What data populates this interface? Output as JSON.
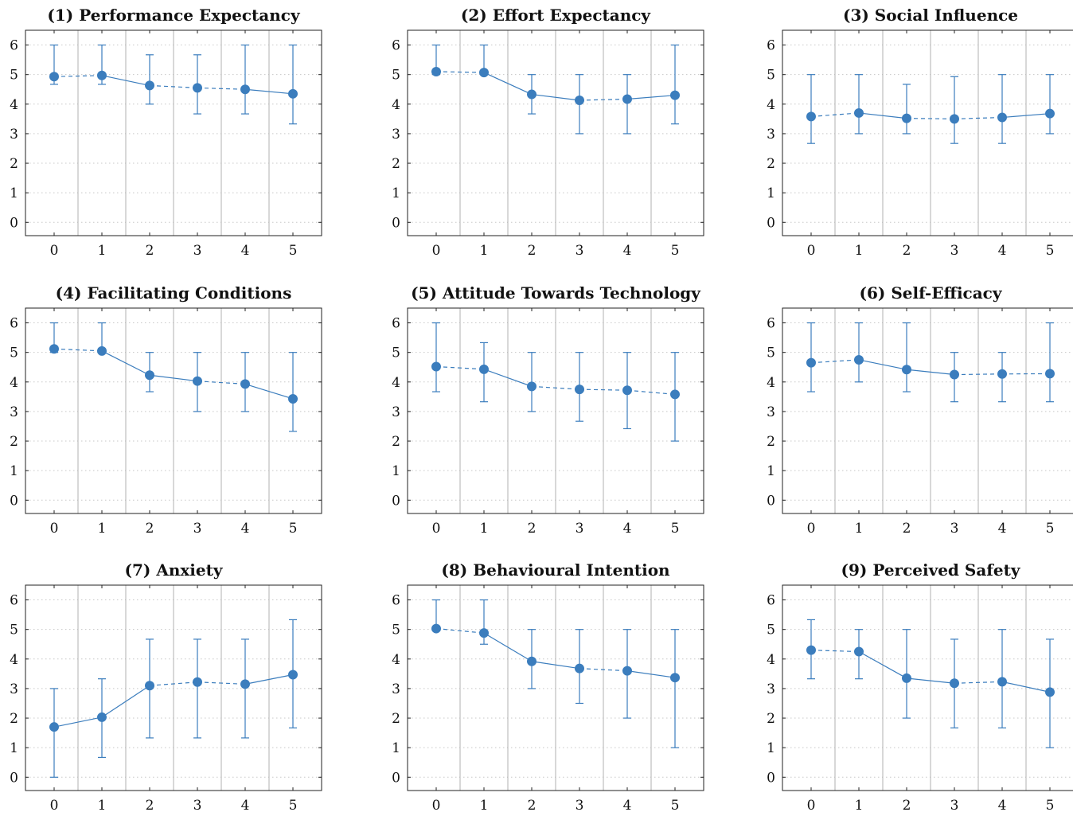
{
  "chart_data": [
    {
      "type": "line",
      "title": "(1) Performance Expectancy",
      "x": [
        0,
        1,
        2,
        3,
        4,
        5
      ],
      "mean": [
        4.93,
        4.97,
        4.63,
        4.55,
        4.5,
        4.35
      ],
      "lower": [
        4.67,
        4.67,
        4.0,
        3.67,
        3.67,
        3.33
      ],
      "upper": [
        6.0,
        6.0,
        5.67,
        5.67,
        6.0,
        6.0
      ],
      "segment_styles": [
        "dashed",
        "solid",
        "dashed",
        "dashed",
        "solid"
      ],
      "xlim": [
        -0.6,
        5.6
      ],
      "ylim": [
        -0.45,
        6.5
      ],
      "yticks": [
        0,
        1,
        2,
        3,
        4,
        5,
        6
      ]
    },
    {
      "type": "line",
      "title": "(2) Effort Expectancy",
      "x": [
        0,
        1,
        2,
        3,
        4,
        5
      ],
      "mean": [
        5.1,
        5.07,
        4.33,
        4.13,
        4.17,
        4.3
      ],
      "lower": [
        5.0,
        5.0,
        3.67,
        3.0,
        3.0,
        3.33
      ],
      "upper": [
        6.0,
        6.0,
        5.0,
        5.0,
        5.0,
        6.0
      ],
      "segment_styles": [
        "dashed",
        "solid",
        "solid",
        "dashed",
        "solid"
      ],
      "xlim": [
        -0.6,
        5.6
      ],
      "ylim": [
        -0.45,
        6.5
      ],
      "yticks": [
        0,
        1,
        2,
        3,
        4,
        5,
        6
      ]
    },
    {
      "type": "line",
      "title": "(3) Social Influence",
      "x": [
        0,
        1,
        2,
        3,
        4,
        5
      ],
      "mean": [
        3.58,
        3.7,
        3.52,
        3.5,
        3.55,
        3.68
      ],
      "lower": [
        2.67,
        3.0,
        3.0,
        2.67,
        2.67,
        3.0
      ],
      "upper": [
        5.0,
        5.0,
        4.67,
        4.93,
        5.0,
        5.0
      ],
      "segment_styles": [
        "dashed",
        "solid",
        "dashed",
        "dashed",
        "solid"
      ],
      "xlim": [
        -0.6,
        5.6
      ],
      "ylim": [
        -0.45,
        6.5
      ],
      "yticks": [
        0,
        1,
        2,
        3,
        4,
        5,
        6
      ]
    },
    {
      "type": "line",
      "title": "(4) Facilitating Conditions",
      "x": [
        0,
        1,
        2,
        3,
        4,
        5
      ],
      "mean": [
        5.12,
        5.05,
        4.23,
        4.03,
        3.93,
        3.43
      ],
      "lower": [
        5.0,
        5.0,
        3.67,
        3.0,
        3.0,
        2.33
      ],
      "upper": [
        6.0,
        6.0,
        5.0,
        5.0,
        5.0,
        5.0
      ],
      "segment_styles": [
        "dashed",
        "solid",
        "solid",
        "dashed",
        "solid"
      ],
      "xlim": [
        -0.6,
        5.6
      ],
      "ylim": [
        -0.45,
        6.5
      ],
      "yticks": [
        0,
        1,
        2,
        3,
        4,
        5,
        6
      ]
    },
    {
      "type": "line",
      "title": "(5) Attitude Towards Technology",
      "x": [
        0,
        1,
        2,
        3,
        4,
        5
      ],
      "mean": [
        4.52,
        4.43,
        3.85,
        3.75,
        3.72,
        3.58
      ],
      "lower": [
        3.67,
        3.33,
        3.0,
        2.67,
        2.42,
        2.0
      ],
      "upper": [
        6.0,
        5.33,
        5.0,
        5.0,
        5.0,
        5.0
      ],
      "segment_styles": [
        "dashed",
        "solid",
        "dashed",
        "dashed",
        "dashed"
      ],
      "xlim": [
        -0.6,
        5.6
      ],
      "ylim": [
        -0.45,
        6.5
      ],
      "yticks": [
        0,
        1,
        2,
        3,
        4,
        5,
        6
      ]
    },
    {
      "type": "line",
      "title": "(6) Self-Efficacy",
      "x": [
        0,
        1,
        2,
        3,
        4,
        5
      ],
      "mean": [
        4.65,
        4.75,
        4.42,
        4.25,
        4.27,
        4.28
      ],
      "lower": [
        3.67,
        4.0,
        3.67,
        3.33,
        3.33,
        3.33
      ],
      "upper": [
        6.0,
        6.0,
        6.0,
        5.0,
        5.0,
        6.0
      ],
      "segment_styles": [
        "dashed",
        "solid",
        "solid",
        "dashed",
        "dashed"
      ],
      "xlim": [
        -0.6,
        5.6
      ],
      "ylim": [
        -0.45,
        6.5
      ],
      "yticks": [
        0,
        1,
        2,
        3,
        4,
        5,
        6
      ]
    },
    {
      "type": "line",
      "title": "(7) Anxiety",
      "x": [
        0,
        1,
        2,
        3,
        4,
        5
      ],
      "mean": [
        1.7,
        2.03,
        3.1,
        3.22,
        3.15,
        3.47
      ],
      "lower": [
        0.0,
        0.67,
        1.33,
        1.33,
        1.33,
        1.67
      ],
      "upper": [
        3.0,
        3.33,
        4.67,
        4.67,
        4.67,
        5.33
      ],
      "segment_styles": [
        "solid",
        "solid",
        "dashed",
        "dashed",
        "solid"
      ],
      "xlim": [
        -0.6,
        5.6
      ],
      "ylim": [
        -0.45,
        6.5
      ],
      "yticks": [
        0,
        1,
        2,
        3,
        4,
        5,
        6
      ]
    },
    {
      "type": "line",
      "title": "(8) Behavioural Intention",
      "x": [
        0,
        1,
        2,
        3,
        4,
        5
      ],
      "mean": [
        5.03,
        4.88,
        3.92,
        3.68,
        3.6,
        3.37
      ],
      "lower": [
        5.0,
        4.5,
        3.0,
        2.5,
        2.0,
        1.0
      ],
      "upper": [
        6.0,
        6.0,
        5.0,
        5.0,
        5.0,
        5.0
      ],
      "segment_styles": [
        "dashed",
        "solid",
        "solid",
        "dashed",
        "solid"
      ],
      "xlim": [
        -0.6,
        5.6
      ],
      "ylim": [
        -0.45,
        6.5
      ],
      "yticks": [
        0,
        1,
        2,
        3,
        4,
        5,
        6
      ]
    },
    {
      "type": "line",
      "title": "(9) Perceived Safety",
      "x": [
        0,
        1,
        2,
        3,
        4,
        5
      ],
      "mean": [
        4.3,
        4.25,
        3.35,
        3.18,
        3.23,
        2.88
      ],
      "lower": [
        3.33,
        3.33,
        2.0,
        1.67,
        1.67,
        1.0
      ],
      "upper": [
        5.33,
        5.0,
        5.0,
        4.67,
        5.0,
        4.67
      ],
      "segment_styles": [
        "dashed",
        "solid",
        "solid",
        "dashed",
        "solid"
      ],
      "xlim": [
        -0.6,
        5.6
      ],
      "ylim": [
        -0.45,
        6.5
      ],
      "yticks": [
        0,
        1,
        2,
        3,
        4,
        5,
        6
      ]
    }
  ],
  "colors": {
    "series": "#3b7dbd",
    "axis": "#222222",
    "vgrid": "#b0b0b0",
    "hgrid": "#c8c8c8"
  }
}
